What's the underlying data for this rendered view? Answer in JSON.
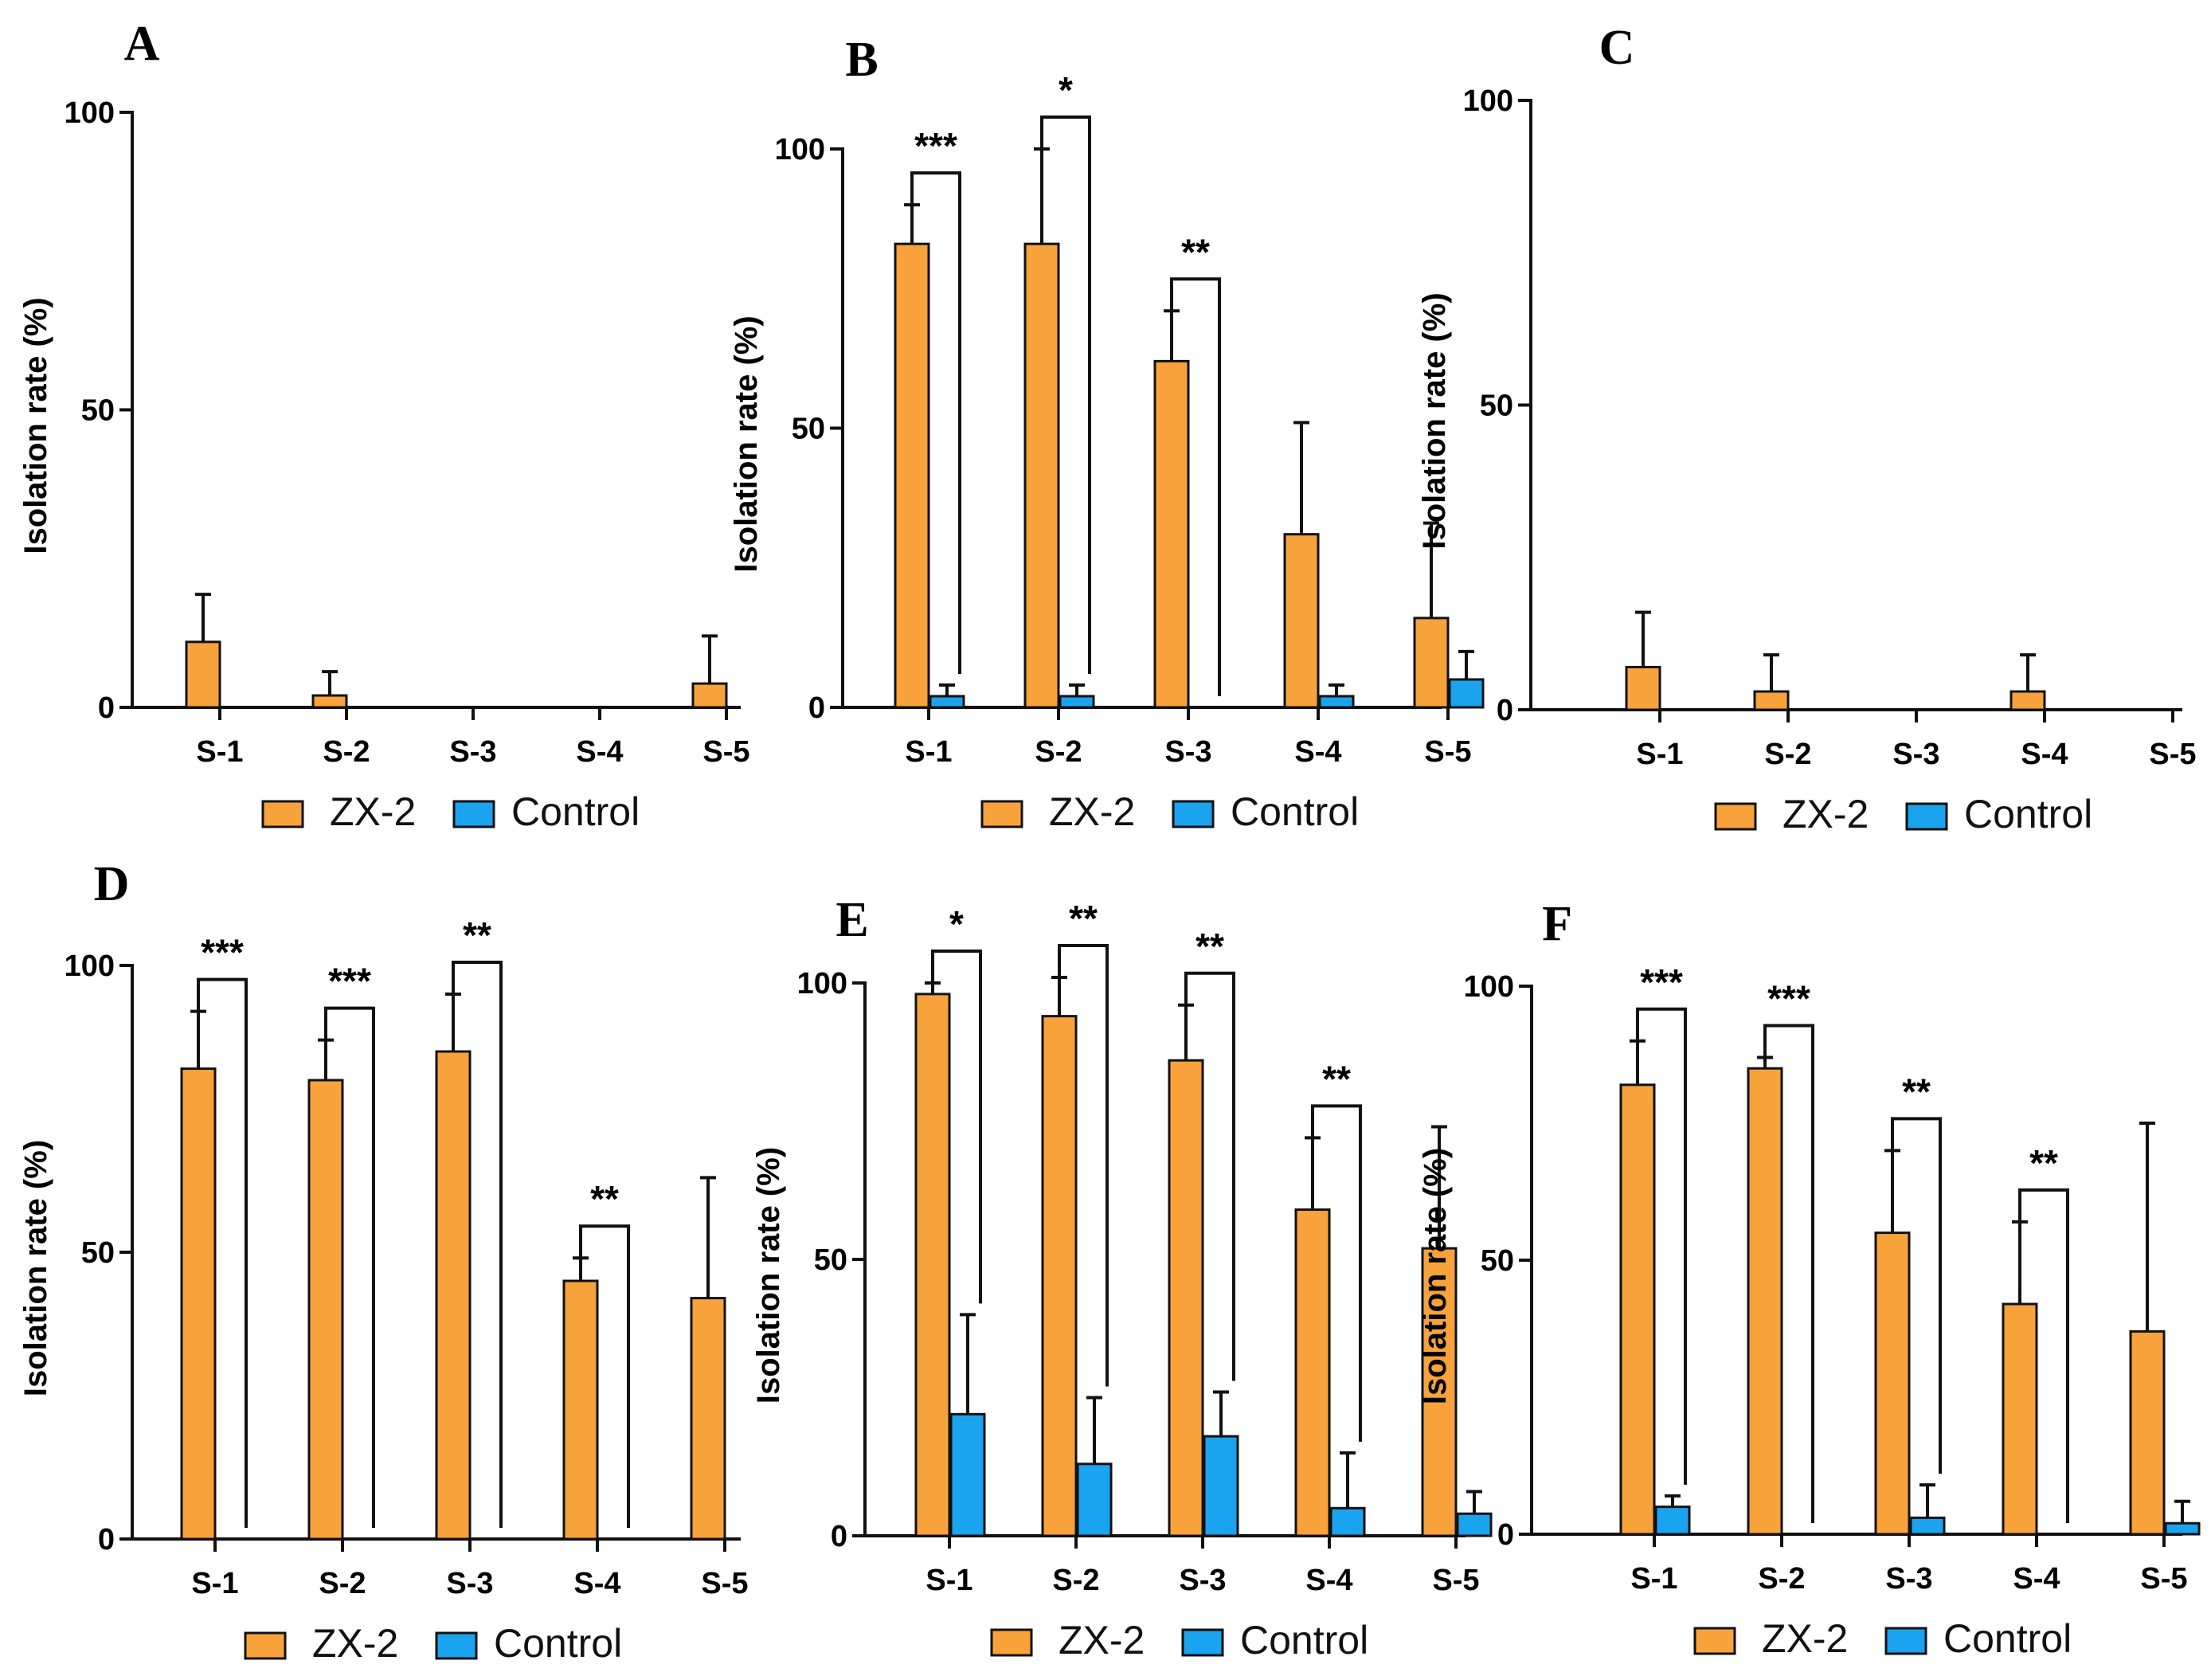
{
  "figure": {
    "colors": {
      "zx2": "#F8A23B",
      "control": "#1AA3EE",
      "stroke": "#111111"
    }
  },
  "chart_data": [
    {
      "panel": "A",
      "type": "bar",
      "ylabel": "Isolation rate  (%)",
      "ylim": [
        0,
        100
      ],
      "yticks": [
        0,
        50,
        100
      ],
      "categories": [
        "S-1",
        "S-2",
        "S-3",
        "S-4",
        "S-5"
      ],
      "series": [
        {
          "name": "ZX-2",
          "values": [
            11,
            2,
            0,
            0,
            4
          ],
          "errors": [
            8,
            4,
            0,
            0,
            8
          ]
        },
        {
          "name": "Control",
          "values": [
            0,
            0,
            0,
            0,
            0
          ],
          "errors": [
            0,
            0,
            0,
            0,
            0
          ]
        }
      ],
      "significance": [],
      "legend": [
        "ZX-2",
        "Control"
      ]
    },
    {
      "panel": "B",
      "type": "bar",
      "ylabel": "Isolation rate  (%)",
      "ylim": [
        0,
        100
      ],
      "yticks": [
        0,
        50,
        100
      ],
      "categories": [
        "S-1",
        "S-2",
        "S-3",
        "S-4",
        "S-5"
      ],
      "series": [
        {
          "name": "ZX-2",
          "values": [
            83,
            83,
            62,
            31,
            16
          ],
          "errors": [
            7,
            17,
            9,
            20,
            17
          ]
        },
        {
          "name": "Control",
          "values": [
            2,
            2,
            0,
            2,
            5
          ],
          "errors": [
            2,
            2,
            0,
            2,
            5
          ]
        }
      ],
      "significance": [
        {
          "category": "S-1",
          "label": "***"
        },
        {
          "category": "S-2",
          "label": "*"
        },
        {
          "category": "S-3",
          "label": "**"
        }
      ],
      "legend": [
        "ZX-2",
        "Control"
      ]
    },
    {
      "panel": "C",
      "type": "bar",
      "ylabel": "Isolation rate  (%)",
      "ylim": [
        0,
        100
      ],
      "yticks": [
        0,
        50,
        100
      ],
      "categories": [
        "S-1",
        "S-2",
        "S-3",
        "S-4",
        "S-5"
      ],
      "series": [
        {
          "name": "ZX-2",
          "values": [
            7,
            3,
            0,
            3,
            0
          ],
          "errors": [
            9,
            6,
            0,
            6,
            0
          ]
        },
        {
          "name": "Control",
          "values": [
            0,
            0,
            0,
            0,
            0
          ],
          "errors": [
            0,
            0,
            0,
            0,
            0
          ]
        }
      ],
      "significance": [],
      "legend": [
        "ZX-2",
        "Control"
      ]
    },
    {
      "panel": "D",
      "type": "bar",
      "ylabel": "Isolation rate  (%)",
      "ylim": [
        0,
        100
      ],
      "yticks": [
        0,
        50,
        100
      ],
      "categories": [
        "S-1",
        "S-2",
        "S-3",
        "S-4",
        "S-5"
      ],
      "series": [
        {
          "name": "ZX-2",
          "values": [
            82,
            80,
            85,
            45,
            42
          ],
          "errors": [
            10,
            7,
            10,
            4,
            21
          ]
        },
        {
          "name": "Control",
          "values": [
            0,
            0,
            0,
            0,
            0
          ],
          "errors": [
            0,
            0,
            0,
            0,
            0
          ]
        }
      ],
      "significance": [
        {
          "category": "S-1",
          "label": "***"
        },
        {
          "category": "S-2",
          "label": "***"
        },
        {
          "category": "S-3",
          "label": "**"
        },
        {
          "category": "S-4",
          "label": "**"
        }
      ],
      "legend": [
        "ZX-2",
        "Control"
      ]
    },
    {
      "panel": "E",
      "type": "bar",
      "ylabel": "Isolation rate  (%)",
      "ylim": [
        0,
        100
      ],
      "yticks": [
        0,
        50,
        100
      ],
      "categories": [
        "S-1",
        "S-2",
        "S-3",
        "S-4",
        "S-5"
      ],
      "series": [
        {
          "name": "ZX-2",
          "values": [
            98,
            94,
            86,
            59,
            52
          ],
          "errors": [
            2,
            7,
            10,
            13,
            22
          ]
        },
        {
          "name": "Control",
          "values": [
            22,
            13,
            18,
            5,
            4
          ],
          "errors": [
            18,
            12,
            8,
            10,
            4
          ]
        }
      ],
      "significance": [
        {
          "category": "S-1",
          "label": "*"
        },
        {
          "category": "S-2",
          "label": "**"
        },
        {
          "category": "S-3",
          "label": "**"
        },
        {
          "category": "S-4",
          "label": "**"
        }
      ],
      "legend": [
        "ZX-2",
        "Control"
      ]
    },
    {
      "panel": "F",
      "type": "bar",
      "ylabel": "Isolation rate  (%)",
      "ylim": [
        0,
        100
      ],
      "yticks": [
        0,
        50,
        100
      ],
      "categories": [
        "S-1",
        "S-2",
        "S-3",
        "S-4",
        "S-5"
      ],
      "series": [
        {
          "name": "ZX-2",
          "values": [
            82,
            85,
            55,
            42,
            37
          ],
          "errors": [
            8,
            2,
            15,
            15,
            38
          ]
        },
        {
          "name": "Control",
          "values": [
            5,
            0,
            3,
            0,
            2
          ],
          "errors": [
            2,
            0,
            6,
            0,
            4
          ]
        }
      ],
      "significance": [
        {
          "category": "S-1",
          "label": "***"
        },
        {
          "category": "S-2",
          "label": "***"
        },
        {
          "category": "S-3",
          "label": "**"
        },
        {
          "category": "S-4",
          "label": "**"
        }
      ],
      "legend": [
        "ZX-2",
        "Control"
      ]
    }
  ]
}
